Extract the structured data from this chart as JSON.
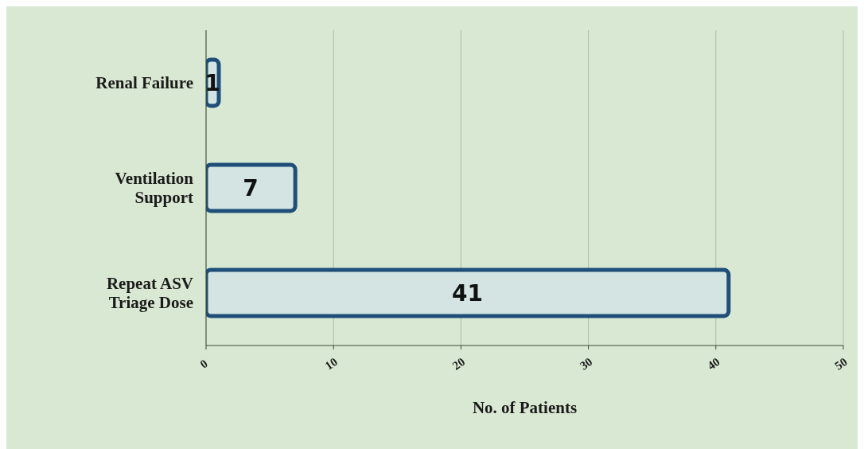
{
  "chart_data": {
    "type": "bar",
    "orientation": "horizontal",
    "xlabel": "No. of Patients",
    "categories": [
      "Renal Failure",
      "Ventilation Support",
      "Repeat ASV Triage Dose"
    ],
    "values": [
      1,
      7,
      41
    ],
    "color": "#d3e4e2",
    "data_labels": true,
    "xlim": [
      0,
      50
    ],
    "xticks": [
      0,
      10,
      20,
      30,
      40,
      50
    ],
    "grid": "x",
    "legend": false
  }
}
